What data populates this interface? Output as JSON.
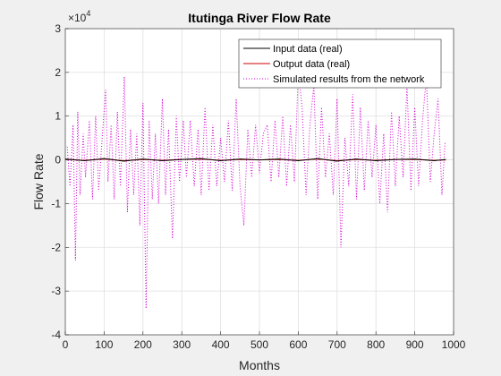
{
  "chart_data": {
    "type": "line",
    "title": "Itutinga River Flow Rate",
    "xlabel": "Months",
    "ylabel": "Flow Rate",
    "y_exponent_label": "×10",
    "y_exponent_power": "4",
    "xlim": [
      0,
      1000
    ],
    "ylim": [
      -4,
      3
    ],
    "xticks": [
      "0",
      "100",
      "200",
      "300",
      "400",
      "500",
      "600",
      "700",
      "800",
      "900",
      "1000"
    ],
    "yticks": [
      "-4",
      "-3",
      "-2",
      "-1",
      "0",
      "1",
      "2",
      "3"
    ],
    "grid": true,
    "legend_position": "top-right",
    "series": [
      {
        "name": "Input data (real)",
        "color": "#000000",
        "style": "solid",
        "x": [
          0,
          50,
          100,
          150,
          200,
          250,
          300,
          350,
          400,
          450,
          500,
          550,
          600,
          650,
          700,
          750,
          800,
          850,
          900,
          950,
          980
        ],
        "y": [
          0.02,
          -0.02,
          0.03,
          -0.03,
          0.02,
          -0.02,
          0.01,
          0.03,
          -0.02,
          0.02,
          0.0,
          0.02,
          -0.02,
          0.03,
          -0.03,
          0.02,
          -0.02,
          0.01,
          0.02,
          -0.02,
          0.01
        ]
      },
      {
        "name": "Output data (real)",
        "color": "#cc0000",
        "style": "solid",
        "x": [
          0,
          50,
          100,
          150,
          200,
          250,
          300,
          350,
          400,
          450,
          500,
          550,
          600,
          650,
          700,
          750,
          800,
          850,
          900,
          950,
          980
        ],
        "y": [
          0.01,
          -0.01,
          0.02,
          -0.02,
          0.01,
          -0.01,
          0.01,
          0.02,
          -0.01,
          0.01,
          0.0,
          0.01,
          -0.01,
          0.02,
          -0.02,
          0.01,
          -0.01,
          0.01,
          0.01,
          -0.01,
          0.0
        ]
      },
      {
        "name": "Simulated results from the network",
        "color": "#d400d4",
        "style": "dotted",
        "x": [
          5,
          12,
          20,
          26,
          32,
          38,
          46,
          52,
          62,
          70,
          78,
          86,
          95,
          104,
          110,
          118,
          126,
          134,
          142,
          152,
          160,
          168,
          176,
          184,
          192,
          200,
          208,
          216,
          224,
          232,
          240,
          250,
          258,
          266,
          276,
          286,
          294,
          304,
          312,
          322,
          332,
          342,
          350,
          360,
          370,
          380,
          390,
          400,
          410,
          420,
          430,
          440,
          450,
          460,
          470,
          480,
          490,
          500,
          510,
          520,
          530,
          540,
          550,
          560,
          570,
          580,
          590,
          600,
          610,
          620,
          630,
          640,
          650,
          660,
          670,
          680,
          690,
          700,
          710,
          720,
          730,
          740,
          750,
          760,
          770,
          780,
          790,
          800,
          810,
          820,
          830,
          840,
          850,
          860,
          870,
          880,
          890,
          900,
          910,
          920,
          930,
          940,
          950,
          960,
          970,
          978
        ],
        "y": [
          0.3,
          -0.6,
          0.8,
          -2.3,
          1.1,
          -0.8,
          0.6,
          -0.4,
          0.9,
          -0.9,
          1.0,
          -0.7,
          0.5,
          1.6,
          -0.5,
          0.8,
          -0.9,
          1.1,
          -0.6,
          1.9,
          -1.2,
          0.7,
          -0.8,
          0.6,
          -1.5,
          1.3,
          -3.4,
          0.9,
          -0.9,
          0.6,
          -1.0,
          1.4,
          -0.8,
          0.7,
          -1.8,
          1.0,
          -0.5,
          0.9,
          -0.4,
          0.9,
          -0.6,
          0.7,
          -0.8,
          1.2,
          -0.7,
          0.8,
          -0.6,
          0.5,
          -0.5,
          0.9,
          -0.7,
          1.4,
          -0.6,
          -1.5,
          0.7,
          -0.4,
          0.8,
          -0.3,
          0.6,
          0.8,
          -0.5,
          0.9,
          -0.4,
          1.0,
          -0.6,
          0.8,
          -0.5,
          2.0,
          1.2,
          -0.8,
          0.8,
          1.7,
          -0.9,
          1.2,
          -0.4,
          0.6,
          -0.8,
          1.4,
          -2.0,
          0.5,
          -0.6,
          1.5,
          -0.9,
          1.2,
          -0.7,
          0.9,
          -0.4,
          0.8,
          -1.0,
          0.6,
          -1.2,
          1.1,
          -0.6,
          1.0,
          -0.4,
          1.7,
          -0.7,
          1.2,
          -0.6,
          0.9,
          1.9,
          -0.5,
          0.6,
          1.4,
          -0.8,
          0.4
        ]
      }
    ]
  }
}
